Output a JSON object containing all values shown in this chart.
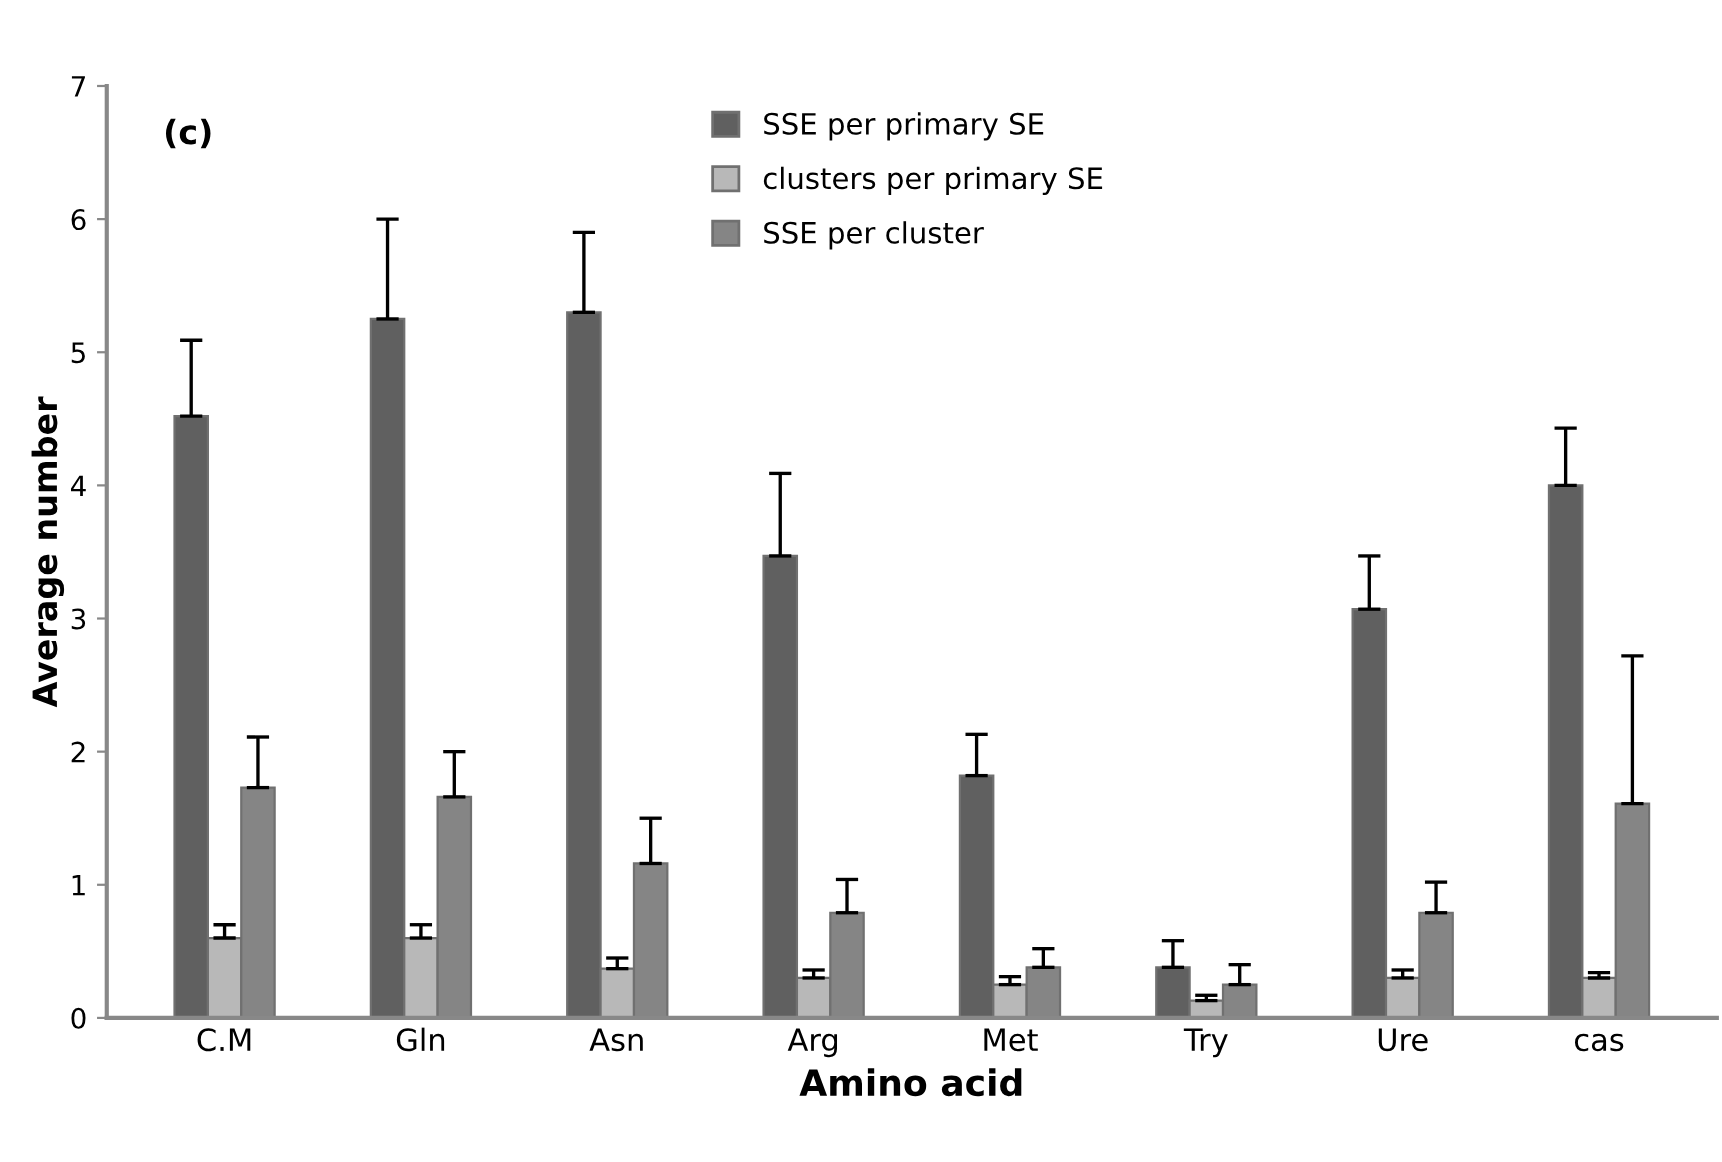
{
  "chart_data": {
    "type": "bar",
    "xlabel": "Amino acid",
    "ylabel": "Average number",
    "annotations": [
      "(c)"
    ],
    "categories": [
      "C.M",
      "Gln",
      "Asn",
      "Arg",
      "Met",
      "Try",
      "Ure",
      "cas"
    ],
    "series": [
      {
        "name": "SSE per primary SE",
        "color": "#606060",
        "values": [
          4.52,
          5.25,
          5.3,
          3.47,
          1.82,
          0.38,
          3.07,
          4.0
        ],
        "errors": [
          [
            4.52,
            5.09
          ],
          [
            5.25,
            6.0
          ],
          [
            5.3,
            5.9
          ],
          [
            3.47,
            4.09
          ],
          [
            1.82,
            2.13
          ],
          [
            0.38,
            0.58
          ],
          [
            3.07,
            3.47
          ],
          [
            4.0,
            4.43
          ]
        ]
      },
      {
        "name": "clusters per primary SE",
        "color": "#b8b8b8",
        "values": [
          0.6,
          0.6,
          0.37,
          0.3,
          0.25,
          0.13,
          0.3,
          0.3
        ],
        "errors": [
          [
            0.6,
            0.7
          ],
          [
            0.6,
            0.7
          ],
          [
            0.37,
            0.45
          ],
          [
            0.3,
            0.36
          ],
          [
            0.25,
            0.31
          ],
          [
            0.13,
            0.17
          ],
          [
            0.3,
            0.36
          ],
          [
            0.3,
            0.34
          ]
        ]
      },
      {
        "name": "SSE per cluster",
        "color": "#858585",
        "values": [
          1.73,
          1.66,
          1.16,
          0.79,
          0.38,
          0.25,
          0.79,
          1.61
        ],
        "errors": [
          [
            1.73,
            2.11
          ],
          [
            1.66,
            2.0
          ],
          [
            1.16,
            1.5
          ],
          [
            0.79,
            1.04
          ],
          [
            0.38,
            0.52
          ],
          [
            0.25,
            0.4
          ],
          [
            0.79,
            1.02
          ],
          [
            1.61,
            2.72
          ]
        ]
      }
    ],
    "ylim": [
      0,
      7
    ],
    "yticks": [
      0,
      1,
      2,
      3,
      4,
      5,
      6,
      7
    ],
    "grid": false,
    "legend": "top"
  }
}
